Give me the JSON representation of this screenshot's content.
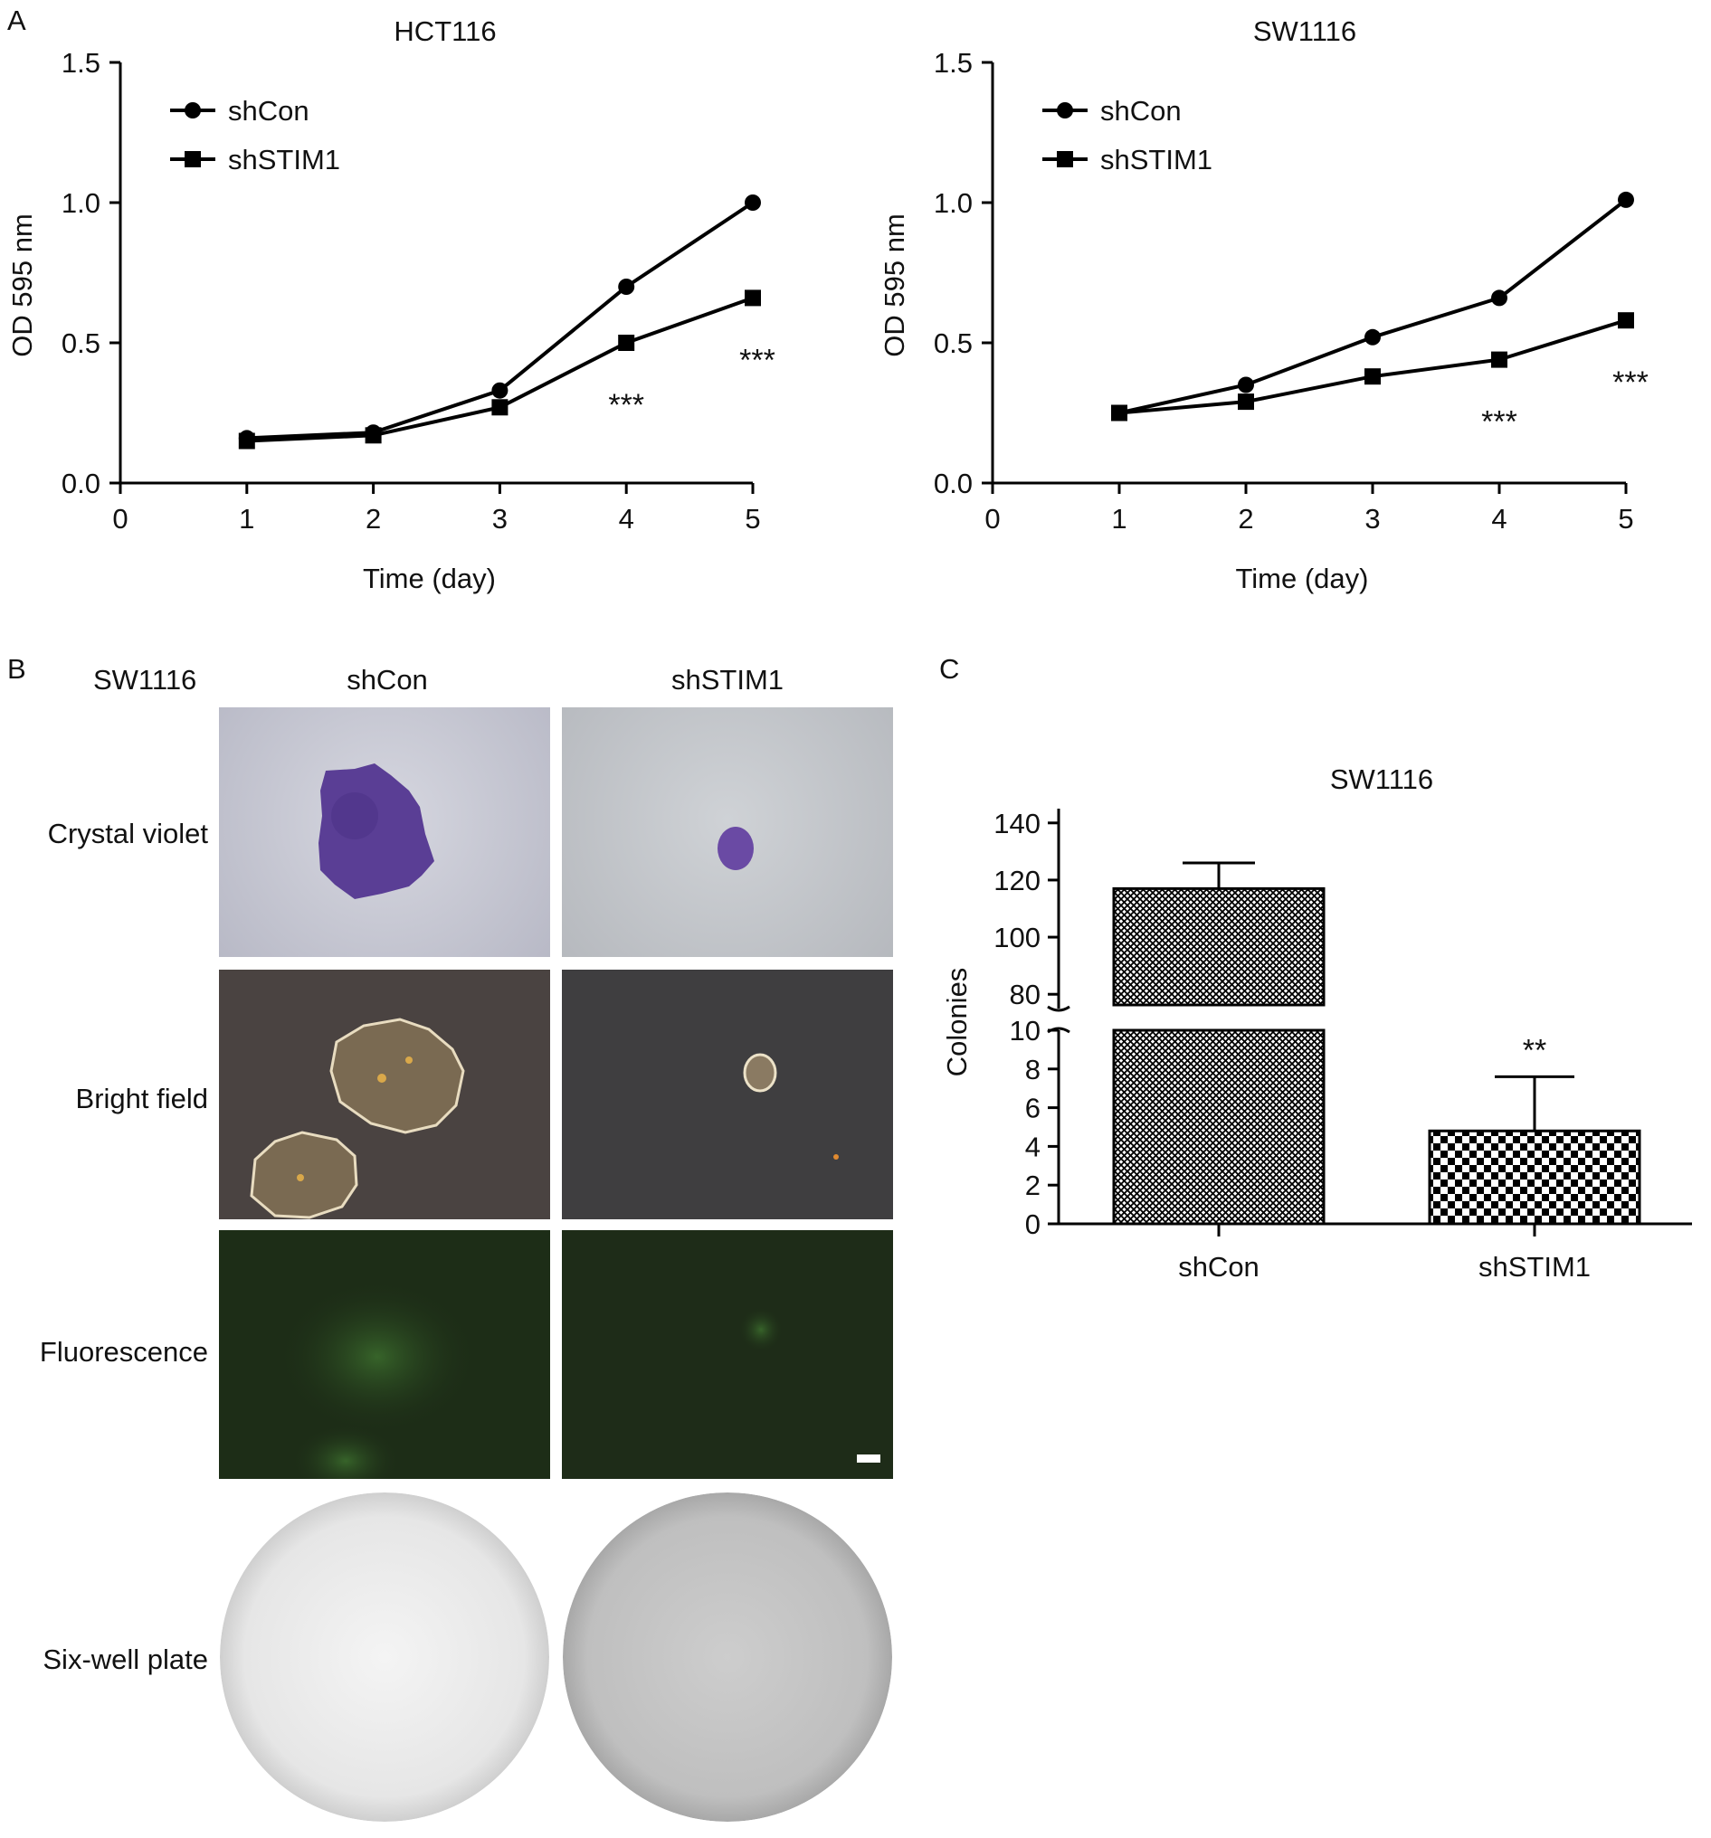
{
  "panels": {
    "a": "A",
    "b": "B",
    "c": "C"
  },
  "panel_b": {
    "cell_line": "SW1116",
    "columns": [
      "shCon",
      "shSTIM1"
    ],
    "rows": [
      "Crystal violet",
      "Bright field",
      "Fluorescence",
      "Six-well plate"
    ]
  },
  "colors": {
    "line": "#000000",
    "crystal_violet": "#5a3e95",
    "fluorescence_bg": "#1d2d17",
    "bright_field_bg": "#4a4341"
  },
  "chart_data": [
    {
      "type": "line",
      "title": "HCT116",
      "xlabel": "Time (day)",
      "ylabel": "OD 595 nm",
      "xlim": [
        0,
        5
      ],
      "ylim": [
        0,
        1.5
      ],
      "xticks": [
        "0",
        "1",
        "2",
        "3",
        "4",
        "5"
      ],
      "yticks": [
        "0.0",
        "0.5",
        "1.0",
        "1.5"
      ],
      "x": [
        1,
        2,
        3,
        4,
        5
      ],
      "series": [
        {
          "name": "shCon",
          "marker": "circle",
          "values": [
            0.16,
            0.18,
            0.33,
            0.7,
            1.0
          ]
        },
        {
          "name": "shSTIM1",
          "marker": "square",
          "values": [
            0.15,
            0.17,
            0.27,
            0.5,
            0.66
          ]
        }
      ],
      "legend": "top-left",
      "annotations": [
        {
          "x": 4,
          "text": "***"
        },
        {
          "x": 5,
          "text": "***"
        }
      ]
    },
    {
      "type": "line",
      "title": "SW1116",
      "xlabel": "Time (day)",
      "ylabel": "OD 595 nm",
      "xlim": [
        0,
        5
      ],
      "ylim": [
        0,
        1.5
      ],
      "xticks": [
        "0",
        "1",
        "2",
        "3",
        "4",
        "5"
      ],
      "yticks": [
        "0.0",
        "0.5",
        "1.0",
        "1.5"
      ],
      "x": [
        1,
        2,
        3,
        4,
        5
      ],
      "series": [
        {
          "name": "shCon",
          "marker": "circle",
          "values": [
            0.25,
            0.35,
            0.52,
            0.66,
            1.01
          ]
        },
        {
          "name": "shSTIM1",
          "marker": "square",
          "values": [
            0.25,
            0.29,
            0.38,
            0.44,
            0.58
          ]
        }
      ],
      "legend": "top-left",
      "annotations": [
        {
          "x": 4,
          "text": "***"
        },
        {
          "x": 5,
          "text": "***"
        }
      ]
    },
    {
      "type": "bar",
      "title": "SW1116",
      "ylabel": "Colonies",
      "categories": [
        "shCon",
        "shSTIM1"
      ],
      "values": [
        117,
        4.8
      ],
      "errors": [
        9,
        2.8
      ],
      "broken_axis": {
        "lower": [
          0,
          10
        ],
        "upper": [
          75,
          145
        ]
      },
      "yticks_lower": [
        "0",
        "2",
        "4",
        "6",
        "8",
        "10"
      ],
      "yticks_upper": [
        "80",
        "100",
        "120",
        "140"
      ],
      "annotations": [
        {
          "category": "shSTIM1",
          "text": "**"
        }
      ]
    }
  ]
}
